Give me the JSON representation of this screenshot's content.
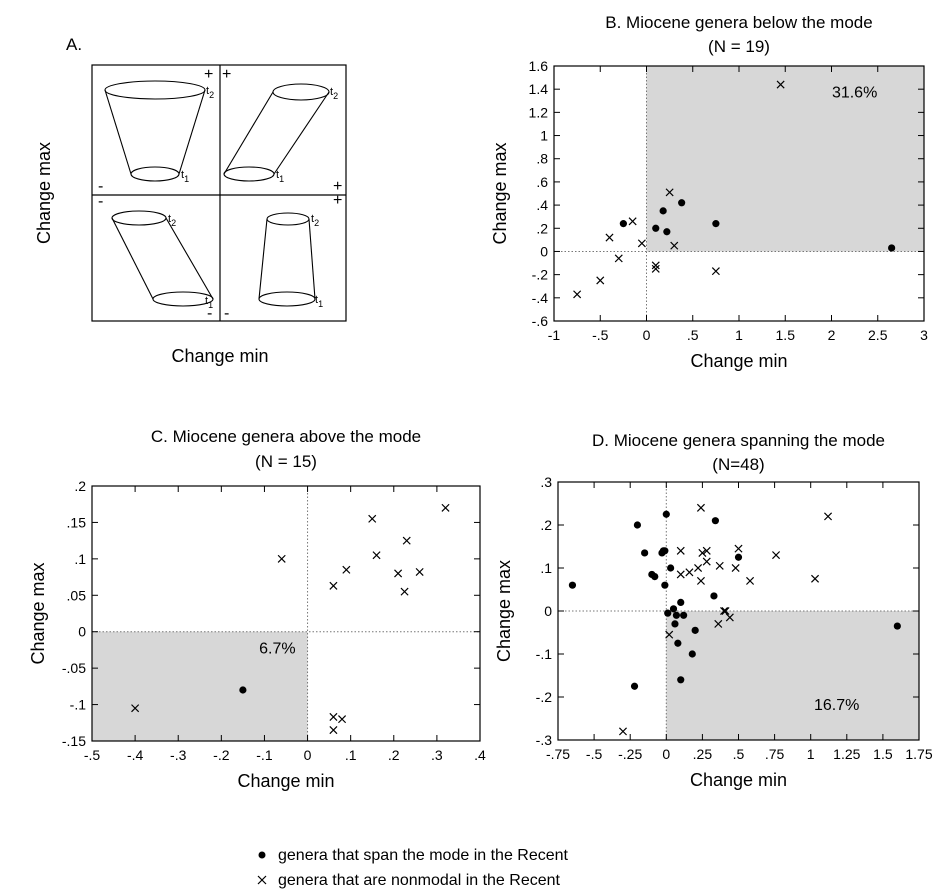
{
  "figure_labels": {
    "panel_a": "A.",
    "panel_a_xlabel": "Change min",
    "panel_a_ylabel": "Change max",
    "cone_tl_top": "2",
    "cone_tl_bottom": "1",
    "cone_tr_top": "2",
    "cone_tr_bottom": "1",
    "cone_bl_top": "2",
    "cone_bl_bottom": "1",
    "cone_br_top": "2",
    "cone_br_bottom": "1"
  },
  "legend": {
    "filled": "genera that  span  the  mode  in the  Recent",
    "cross": "genera that  are  nonmodal  in  the  Recent"
  },
  "colors": {
    "shade": "#d7d7d7",
    "marker": "#000000",
    "axis": "#000000"
  },
  "chart_data": [
    {
      "id": "B",
      "type": "scatter",
      "title": "B. Miocene genera below the mode",
      "subtitle": "(N = 19)",
      "xlabel": "Change min",
      "ylabel": "Change max",
      "xlim": [
        -1,
        3
      ],
      "ylim": [
        -0.6,
        1.6
      ],
      "xticks": [
        -1,
        -0.5,
        0,
        0.5,
        1,
        1.5,
        2,
        2.5,
        3
      ],
      "xtick_labels": [
        "-1",
        "-.5",
        "0",
        ".5",
        "1",
        "1.5",
        "2",
        "2.5",
        "3"
      ],
      "yticks": [
        -0.6,
        -0.4,
        -0.2,
        0,
        0.2,
        0.4,
        0.6,
        0.8,
        1,
        1.2,
        1.4,
        1.6
      ],
      "ytick_labels": [
        "-.6",
        "-.4",
        "-.2",
        "0",
        ".2",
        ".4",
        ".6",
        ".8",
        "1",
        "1.2",
        "1.4",
        "1.6"
      ],
      "shaded_region": {
        "x": [
          0,
          3
        ],
        "y": [
          0,
          1.6
        ]
      },
      "annotation": "31.6%",
      "annotation_xy": [
        2.25,
        1.33
      ],
      "series": [
        {
          "name": "genera that span the mode in the Recent",
          "marker": "dot",
          "x": [
            -0.25,
            0.1,
            0.18,
            0.22,
            0.38,
            0.75,
            2.65
          ],
          "y": [
            0.24,
            0.2,
            0.35,
            0.17,
            0.42,
            0.24,
            0.03
          ]
        },
        {
          "name": "genera that are nonmodal in the Recent",
          "marker": "cross",
          "x": [
            -0.75,
            -0.5,
            -0.4,
            -0.3,
            -0.15,
            -0.05,
            0.1,
            0.1,
            0.25,
            0.3,
            0.75,
            1.45
          ],
          "y": [
            -0.37,
            -0.25,
            0.12,
            -0.06,
            0.26,
            0.07,
            -0.12,
            -0.15,
            0.51,
            0.05,
            -0.17,
            1.44
          ]
        }
      ]
    },
    {
      "id": "C",
      "type": "scatter",
      "title": "C. Miocene genera above the mode",
      "subtitle": "(N = 15)",
      "xlabel": "Change min",
      "ylabel": "Change max",
      "xlim": [
        -0.5,
        0.4
      ],
      "ylim": [
        -0.15,
        0.2
      ],
      "xticks": [
        -0.5,
        -0.4,
        -0.3,
        -0.2,
        -0.1,
        0,
        0.1,
        0.2,
        0.3,
        0.4
      ],
      "xtick_labels": [
        "-.5",
        "-.4",
        "-.3",
        "-.2",
        "-.1",
        "0",
        ".1",
        ".2",
        ".3",
        ".4"
      ],
      "yticks": [
        -0.15,
        -0.1,
        -0.05,
        0,
        0.05,
        0.1,
        0.15,
        0.2
      ],
      "ytick_labels": [
        "-.15",
        "-.1",
        "-.05",
        "0",
        ".05",
        ".1",
        ".15",
        ".2"
      ],
      "shaded_region": {
        "x": [
          -0.5,
          0
        ],
        "y": [
          -0.15,
          0
        ]
      },
      "annotation": "6.7%",
      "annotation_xy": [
        -0.07,
        -0.03
      ],
      "series": [
        {
          "name": "genera that span the mode in the Recent",
          "marker": "dot",
          "x": [
            -0.15
          ],
          "y": [
            -0.08
          ]
        },
        {
          "name": "genera that are nonmodal in the Recent",
          "marker": "cross",
          "x": [
            -0.4,
            -0.06,
            0.06,
            0.09,
            0.15,
            0.16,
            0.21,
            0.225,
            0.23,
            0.26,
            0.32,
            0.06,
            0.08,
            0.06
          ],
          "y": [
            -0.105,
            0.1,
            0.063,
            0.085,
            0.155,
            0.105,
            0.08,
            0.055,
            0.125,
            0.082,
            0.17,
            -0.117,
            -0.12,
            -0.135
          ]
        }
      ]
    },
    {
      "id": "D",
      "type": "scatter",
      "title": "D. Miocene genera spanning the mode",
      "subtitle": "(N=48)",
      "xlabel": "Change min",
      "ylabel": "Change max",
      "xlim": [
        -0.75,
        1.75
      ],
      "ylim": [
        -0.3,
        0.3
      ],
      "xticks": [
        -0.75,
        -0.5,
        -0.25,
        0,
        0.25,
        0.5,
        0.75,
        1,
        1.25,
        1.5,
        1.75
      ],
      "xtick_labels": [
        "-.75",
        "-.5",
        "-.25",
        "0",
        ".25",
        ".5",
        ".75",
        "1",
        "1.25",
        "1.5",
        "1.75"
      ],
      "yticks": [
        -0.3,
        -0.2,
        -0.1,
        0,
        0.1,
        0.2,
        0.3
      ],
      "ytick_labels": [
        "-.3",
        "-.2",
        "-.1",
        "0",
        ".1",
        ".2",
        ".3"
      ],
      "shaded_region": {
        "x": [
          0,
          1.75
        ],
        "y": [
          -0.3,
          0
        ]
      },
      "annotation": "16.7%",
      "annotation_xy": [
        1.18,
        -0.23
      ],
      "series": [
        {
          "name": "genera that span the mode in the Recent",
          "marker": "dot",
          "x": [
            -0.65,
            -0.2,
            -0.15,
            -0.1,
            -0.08,
            -0.03,
            -0.02,
            0,
            -0.01,
            -0.01,
            0.01,
            0.03,
            0.05,
            0.06,
            0.07,
            0.08,
            0.1,
            0.1,
            0.12,
            0.18,
            0.2,
            0.33,
            0.34,
            0.5,
            1.6,
            -0.22
          ],
          "y": [
            0.06,
            0.2,
            0.135,
            0.085,
            0.08,
            0.135,
            0.14,
            0.225,
            0.06,
            0.14,
            -0.005,
            0.1,
            0.005,
            -0.03,
            -0.01,
            -0.075,
            0.02,
            -0.16,
            -0.01,
            -0.1,
            -0.045,
            0.035,
            0.21,
            0.125,
            -0.035,
            -0.175
          ]
        },
        {
          "name": "genera that are nonmodal in the Recent",
          "marker": "cross",
          "x": [
            -0.3,
            0.02,
            0.1,
            0.1,
            0.16,
            0.24,
            0.24,
            0.25,
            0.28,
            0.36,
            0.37,
            0.4,
            0.41,
            0.44,
            0.48,
            0.5,
            0.58,
            0.76,
            1.03,
            1.12,
            0.28,
            0.22
          ],
          "y": [
            -0.28,
            -0.055,
            0.085,
            0.14,
            0.09,
            0.24,
            0.07,
            0.135,
            0.14,
            -0.03,
            0.105,
            0.0,
            0.0,
            -0.015,
            0.1,
            0.145,
            0.07,
            0.13,
            0.075,
            0.22,
            0.115,
            0.1
          ]
        }
      ]
    }
  ]
}
